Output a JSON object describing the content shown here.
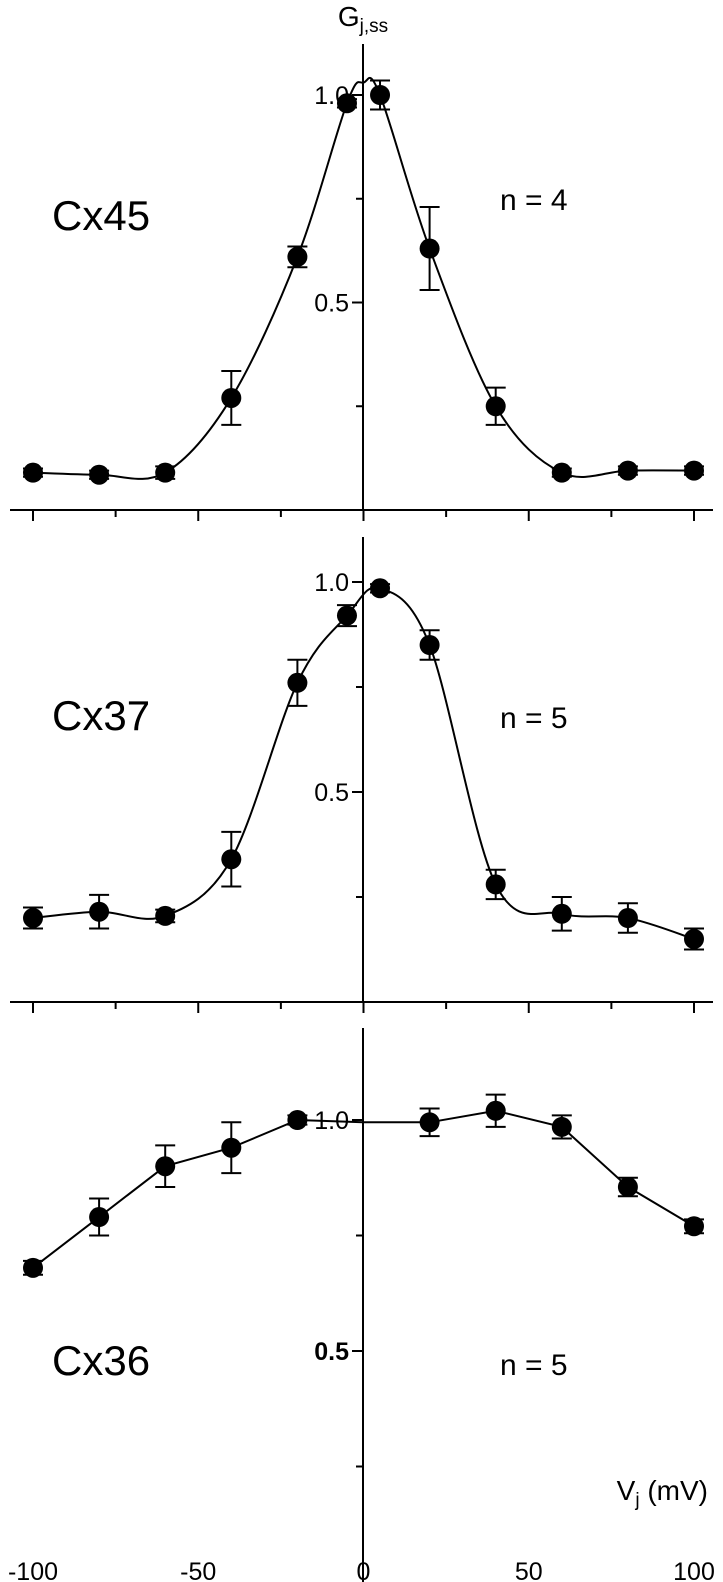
{
  "chart_data": [
    {
      "type": "line",
      "title": "Cx45",
      "annotation": "n = 4",
      "xlim": [
        -100,
        100
      ],
      "ylim": [
        0,
        1.05
      ],
      "yticks": [
        {
          "value": 1.0,
          "label": "1.0"
        },
        {
          "value": 0.5,
          "label": "0.5"
        }
      ],
      "x": [
        -100,
        -80,
        -60,
        -40,
        -20,
        -5,
        5,
        20,
        40,
        60,
        80,
        100
      ],
      "y": [
        0.09,
        0.085,
        0.09,
        0.27,
        0.61,
        0.98,
        1.0,
        0.63,
        0.25,
        0.09,
        0.095,
        0.095
      ],
      "yerr": [
        0.01,
        0.01,
        0.015,
        0.065,
        0.025,
        0.01,
        0.035,
        0.1,
        0.045,
        0.01,
        0.01,
        0.01
      ],
      "fit": "boltzmann"
    },
    {
      "type": "line",
      "title": "Cx37",
      "annotation": "n = 5",
      "xlim": [
        -100,
        100
      ],
      "ylim": [
        0,
        1.05
      ],
      "yticks": [
        {
          "value": 1.0,
          "label": "1.0"
        },
        {
          "value": 0.5,
          "label": "0.5"
        }
      ],
      "x": [
        -100,
        -80,
        -60,
        -40,
        -20,
        -5,
        5,
        20,
        40,
        60,
        80,
        100
      ],
      "y": [
        0.2,
        0.215,
        0.205,
        0.34,
        0.76,
        0.92,
        0.985,
        0.85,
        0.28,
        0.21,
        0.2,
        0.15
      ],
      "yerr": [
        0.025,
        0.04,
        0.015,
        0.065,
        0.055,
        0.025,
        0.01,
        0.035,
        0.035,
        0.04,
        0.035,
        0.025
      ],
      "fit": "boltzmann"
    },
    {
      "type": "line",
      "title": "Cx36",
      "annotation": "n = 5",
      "xlabel": "Vj (mV)",
      "xlim": [
        -100,
        100
      ],
      "ylim": [
        0,
        1.05
      ],
      "yticks": [
        {
          "value": 1.0,
          "label": "1.0"
        },
        {
          "value": 0.5,
          "label": "0.5"
        }
      ],
      "xticks": [
        -100,
        -50,
        0,
        50,
        100
      ],
      "x": [
        -100,
        -80,
        -60,
        -40,
        -20,
        20,
        40,
        60,
        80,
        100
      ],
      "y": [
        0.68,
        0.79,
        0.9,
        0.94,
        1.0,
        0.995,
        1.02,
        0.985,
        0.855,
        0.77
      ],
      "yerr": [
        0.015,
        0.04,
        0.045,
        0.055,
        0.01,
        0.03,
        0.035,
        0.025,
        0.02,
        0.015
      ],
      "fit": "connect"
    }
  ],
  "ylabel": {
    "main": "G",
    "sub": "j,ss"
  },
  "xlabel": {
    "main": "V",
    "sub": "j",
    "rest": " (mV)"
  }
}
